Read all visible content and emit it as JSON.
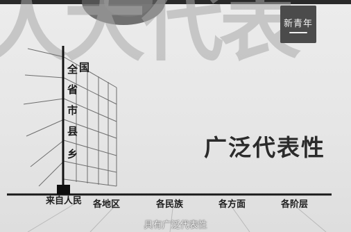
{
  "background_watermark": "人大代表",
  "logo": {
    "text": "新青年",
    "color": "#4b4b4b"
  },
  "vertical_axis": {
    "label_top": "国",
    "levels": [
      "全",
      "省",
      "市",
      "县",
      "乡"
    ]
  },
  "headline": "广泛代表性",
  "baseline": {
    "origin_label": "来自人民",
    "categories": [
      "各地区",
      "各民族",
      "各方面",
      "各阶层"
    ]
  },
  "caption": "具有广泛代表性"
}
